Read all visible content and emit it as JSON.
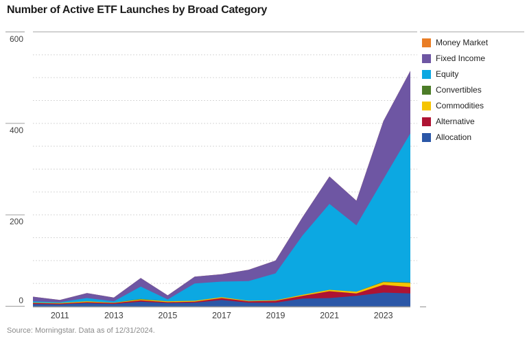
{
  "title": "Number of Active ETF Launches by Broad Category",
  "source": "Source: Morningstar. Data as of 12/31/2024.",
  "chart_data": {
    "type": "area",
    "stacked": true,
    "title": "Number of Active ETF Launches by Broad Category",
    "xlabel": "",
    "ylabel": "",
    "x": [
      2010,
      2011,
      2012,
      2013,
      2014,
      2015,
      2016,
      2017,
      2018,
      2019,
      2020,
      2021,
      2022,
      2023,
      2024
    ],
    "x_tick_labels": [
      "2011",
      "2013",
      "2015",
      "2017",
      "2019",
      "2021",
      "2023"
    ],
    "y_ticks": [
      0,
      200,
      400,
      600
    ],
    "ylim": [
      0,
      600
    ],
    "gridline_step": 50,
    "grid": "dotted horizontal every 50",
    "legend_position": "right",
    "series": [
      {
        "name": "Allocation",
        "color": "#2b57a7",
        "values": [
          5,
          4,
          7,
          5,
          10,
          7,
          8,
          14,
          8,
          8,
          17,
          18,
          23,
          30,
          28
        ]
      },
      {
        "name": "Alternative",
        "color": "#ae1333",
        "values": [
          2,
          2,
          2,
          2,
          3,
          2,
          2,
          4,
          3,
          4,
          6,
          15,
          5,
          17,
          14
        ]
      },
      {
        "name": "Commodities",
        "color": "#f5c400",
        "values": [
          1,
          1,
          2,
          1,
          2,
          2,
          2,
          2,
          1,
          1,
          2,
          3,
          4,
          6,
          9
        ]
      },
      {
        "name": "Convertibles",
        "color": "#4c7c28",
        "values": [
          0,
          0,
          0,
          0,
          1,
          0,
          0,
          0,
          0,
          0,
          0,
          0,
          0,
          1,
          1
        ]
      },
      {
        "name": "Equity",
        "color": "#0ca8e2",
        "values": [
          3,
          2,
          7,
          3,
          27,
          4,
          38,
          34,
          43,
          59,
          130,
          188,
          145,
          224,
          326
        ]
      },
      {
        "name": "Fixed Income",
        "color": "#6e56a3",
        "values": [
          10,
          5,
          11,
          8,
          19,
          9,
          15,
          16,
          25,
          28,
          40,
          60,
          54,
          127,
          137
        ]
      },
      {
        "name": "Money Market",
        "color": "#e97d25",
        "values": [
          0,
          0,
          0,
          0,
          0,
          0,
          0,
          0,
          0,
          0,
          0,
          0,
          0,
          0,
          0
        ]
      }
    ],
    "legend_order_top_to_bottom": [
      "Money Market",
      "Fixed Income",
      "Equity",
      "Convertibles",
      "Commodities",
      "Alternative",
      "Allocation"
    ],
    "totals_by_year": [
      21,
      14,
      29,
      19,
      62,
      24,
      65,
      70,
      80,
      100,
      195,
      284,
      231,
      405,
      515
    ],
    "axis_colors": {
      "top_border": "#aaaaaa",
      "baseline": "#8c8c8c",
      "tick": "#aaaaaa",
      "gridline": "#c9c9c9"
    }
  }
}
